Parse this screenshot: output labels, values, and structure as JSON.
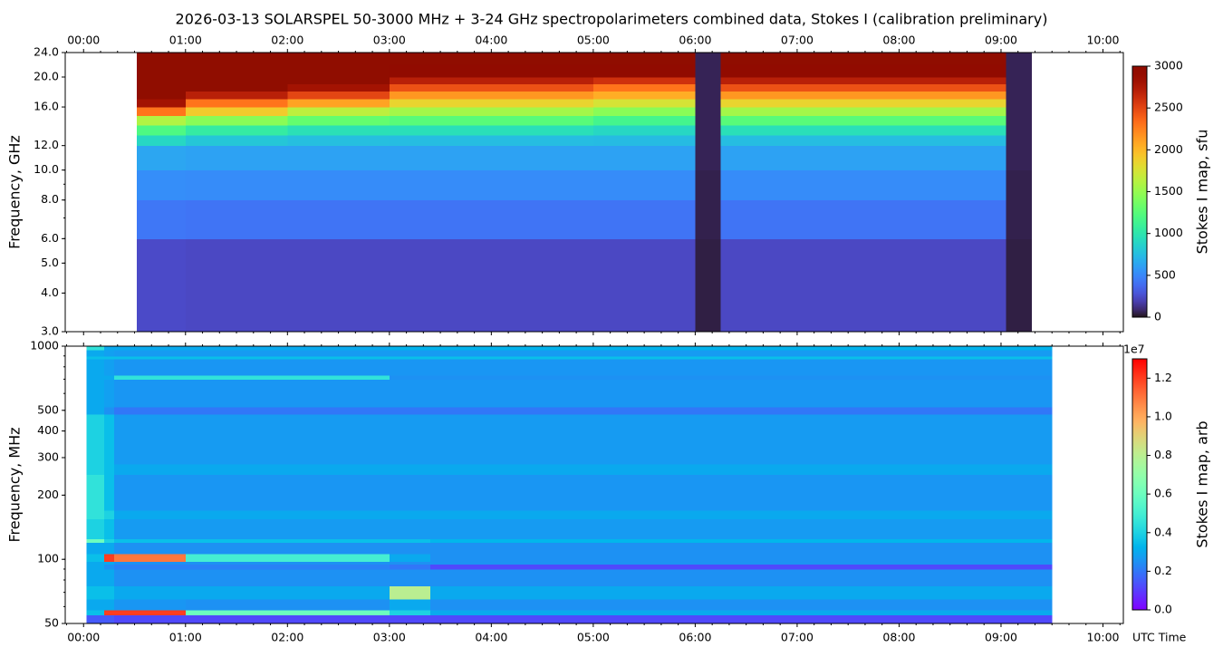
{
  "chart_data": [
    {
      "type": "heatmap",
      "title": "2026-03-13  SOLARSPEL  50-3000 MHz  +  3-24 GHz  spectropolarimeters combined data,  Stokes I  (calibration preliminary)",
      "y_label": "Frequency, GHz",
      "colorbar_label": "Stokes I map, sfu",
      "colormap": "turbo",
      "log_scale": true,
      "xaxis_side": "top",
      "xlim": [
        -0.18,
        10.2
      ],
      "xticks": [
        {
          "value": 0,
          "label": "00:00"
        },
        {
          "value": 1,
          "label": "01:00"
        },
        {
          "value": 2,
          "label": "02:00"
        },
        {
          "value": 3,
          "label": "03:00"
        },
        {
          "value": 4,
          "label": "04:00"
        },
        {
          "value": 5,
          "label": "05:00"
        },
        {
          "value": 6,
          "label": "06:00"
        },
        {
          "value": 7,
          "label": "07:00"
        },
        {
          "value": 8,
          "label": "08:00"
        },
        {
          "value": 9,
          "label": "09:00"
        },
        {
          "value": 10,
          "label": "10:00"
        }
      ],
      "ylim": [
        3,
        24
      ],
      "yticks": [
        {
          "value": 3,
          "label": "3.0"
        },
        {
          "value": 4,
          "label": "4.0"
        },
        {
          "value": 5,
          "label": "5.0"
        },
        {
          "value": 6,
          "label": "6.0"
        },
        {
          "value": 8,
          "label": "8.0"
        },
        {
          "value": 10,
          "label": "10.0"
        },
        {
          "value": 12,
          "label": "12.0"
        },
        {
          "value": 16,
          "label": "16.0"
        },
        {
          "value": 20,
          "label": "20.0"
        },
        {
          "value": 24,
          "label": "24.0"
        }
      ],
      "clim": [
        0,
        3000
      ],
      "cticks": [
        0,
        500,
        1000,
        1500,
        2000,
        2500,
        3000
      ],
      "x_edges": [
        0.52,
        1,
        2,
        3,
        4,
        5,
        6,
        6.25,
        7,
        8,
        9.05,
        9.3
      ],
      "y_edges": [
        3,
        6,
        8,
        10,
        12,
        13,
        14,
        15,
        16,
        17,
        18,
        19,
        20,
        22,
        24
      ],
      "z": [
        [
          240,
          230,
          230,
          230,
          230,
          230,
          40,
          230,
          230,
          230,
          40
        ],
        [
          430,
          420,
          420,
          420,
          420,
          420,
          50,
          420,
          420,
          420,
          50
        ],
        [
          530,
          520,
          520,
          520,
          520,
          520,
          50,
          520,
          520,
          520,
          50
        ],
        [
          640,
          620,
          620,
          620,
          620,
          620,
          60,
          620,
          620,
          620,
          60
        ],
        [
          900,
          800,
          760,
          750,
          750,
          740,
          60,
          750,
          750,
          750,
          60
        ],
        [
          1200,
          1050,
          960,
          950,
          950,
          900,
          60,
          950,
          950,
          950,
          60
        ],
        [
          1600,
          1450,
          1300,
          1250,
          1250,
          1150,
          60,
          1250,
          1250,
          1250,
          60
        ],
        [
          2300,
          1900,
          1650,
          1550,
          1550,
          1450,
          60,
          1550,
          1550,
          1550,
          60
        ],
        [
          2800,
          2300,
          2100,
          1850,
          1850,
          1750,
          60,
          1850,
          1850,
          1850,
          60
        ],
        [
          3000,
          2700,
          2500,
          2150,
          2150,
          2050,
          60,
          2150,
          2150,
          2150,
          60
        ],
        [
          3000,
          3000,
          2800,
          2450,
          2450,
          2300,
          60,
          2450,
          2450,
          2450,
          60
        ],
        [
          3000,
          3000,
          3000,
          2700,
          2700,
          2600,
          60,
          2700,
          2700,
          2700,
          60
        ],
        [
          3000,
          3000,
          3000,
          2950,
          2950,
          2950,
          60,
          2950,
          2950,
          2950,
          60
        ],
        [
          3000,
          3000,
          3000,
          3000,
          3000,
          3000,
          60,
          3000,
          3000,
          3000,
          60
        ]
      ]
    },
    {
      "type": "heatmap",
      "y_label": "Frequency, MHz",
      "x_label": "UTC Time",
      "colorbar_label": "Stokes I map, arb",
      "colorbar_offset": "1e7",
      "colormap": "rainbow",
      "log_scale": true,
      "xaxis_side": "bottom",
      "xlim": [
        -0.18,
        10.2
      ],
      "xticks": [
        {
          "value": 0,
          "label": "00:00"
        },
        {
          "value": 1,
          "label": "01:00"
        },
        {
          "value": 2,
          "label": "02:00"
        },
        {
          "value": 3,
          "label": "03:00"
        },
        {
          "value": 4,
          "label": "04:00"
        },
        {
          "value": 5,
          "label": "05:00"
        },
        {
          "value": 6,
          "label": "06:00"
        },
        {
          "value": 7,
          "label": "07:00"
        },
        {
          "value": 8,
          "label": "08:00"
        },
        {
          "value": 9,
          "label": "09:00"
        },
        {
          "value": 10,
          "label": "10:00"
        }
      ],
      "ylim": [
        50,
        1000
      ],
      "yticks": [
        50,
        100,
        200,
        300,
        400,
        500,
        1000
      ],
      "clim": [
        0,
        1.3
      ],
      "cticks": [
        {
          "value": 0,
          "label": "0.0"
        },
        0.2,
        0.4,
        0.6,
        0.8,
        {
          "value": 1,
          "label": "1.0"
        },
        1.2
      ],
      "x_edges": [
        0.03,
        0.2,
        0.3,
        1,
        3,
        3.4,
        9.5
      ],
      "y_edges": [
        50,
        55,
        58,
        65,
        75,
        90,
        95,
        98,
        106,
        120,
        125,
        155,
        170,
        250,
        280,
        480,
        520,
        700,
        730,
        870,
        900,
        960,
        1000
      ],
      "z": [
        [
          0.15,
          0.15,
          0.12,
          0.12,
          0.12,
          0.12
        ],
        [
          0.35,
          1.2,
          1.2,
          0.6,
          0.4,
          0.3
        ],
        [
          0.3,
          0.3,
          0.26,
          0.25,
          0.3,
          0.25
        ],
        [
          0.35,
          0.35,
          0.3,
          0.3,
          0.8,
          0.3
        ],
        [
          0.3,
          0.3,
          0.25,
          0.25,
          0.25,
          0.25
        ],
        [
          0.3,
          0.25,
          0.22,
          0.22,
          0.2,
          0.12
        ],
        [
          0.3,
          0.3,
          0.25,
          0.25,
          0.25,
          0.25
        ],
        [
          0.35,
          1.2,
          1.1,
          0.5,
          0.3,
          0.25
        ],
        [
          0.3,
          0.3,
          0.25,
          0.25,
          0.25,
          0.25
        ],
        [
          0.6,
          0.4,
          0.35,
          0.35,
          0.35,
          0.33
        ],
        [
          0.4,
          0.35,
          0.27,
          0.27,
          0.27,
          0.27
        ],
        [
          0.45,
          0.4,
          0.3,
          0.3,
          0.3,
          0.3
        ],
        [
          0.45,
          0.35,
          0.26,
          0.26,
          0.26,
          0.26
        ],
        [
          0.4,
          0.35,
          0.3,
          0.3,
          0.3,
          0.3
        ],
        [
          0.4,
          0.35,
          0.27,
          0.27,
          0.27,
          0.27
        ],
        [
          0.3,
          0.25,
          0.2,
          0.2,
          0.2,
          0.2
        ],
        [
          0.3,
          0.28,
          0.26,
          0.26,
          0.26,
          0.26
        ],
        [
          0.3,
          0.3,
          0.45,
          0.45,
          0.25,
          0.25
        ],
        [
          0.3,
          0.28,
          0.26,
          0.26,
          0.26,
          0.26
        ],
        [
          0.35,
          0.35,
          0.35,
          0.35,
          0.35,
          0.35
        ],
        [
          0.3,
          0.28,
          0.27,
          0.27,
          0.27,
          0.27
        ],
        [
          0.45,
          0.3,
          0.3,
          0.3,
          0.32,
          0.32
        ]
      ]
    }
  ]
}
